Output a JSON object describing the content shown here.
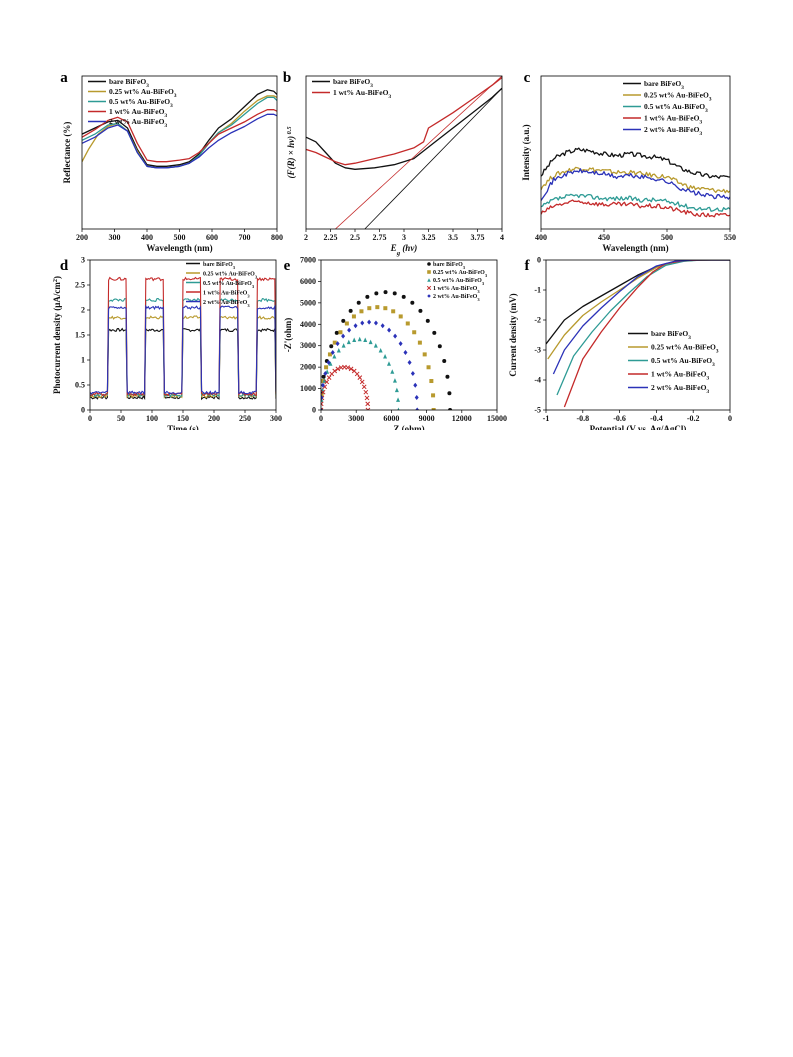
{
  "palette": [
    "#111111",
    "#b89a2e",
    "#2e9b95",
    "#c42a2a",
    "#2b32b8"
  ],
  "chart_data": [
    {
      "panel": "a",
      "type": "line",
      "xlabel": "Wavelength (nm)",
      "ylabel": "Reflectance (%)",
      "xlim": [
        200,
        800
      ],
      "xticks": [
        200,
        300,
        400,
        500,
        600,
        700,
        800
      ],
      "ylim": [
        0,
        100
      ],
      "yticks_shown": false,
      "legend_position": "top-left",
      "series": [
        {
          "name": "bare BiFeO3",
          "color": "#111111",
          "x": [
            200,
            240,
            280,
            310,
            340,
            370,
            400,
            430,
            460,
            500,
            530,
            560,
            590,
            620,
            660,
            700,
            740,
            770,
            790,
            800
          ],
          "y": [
            62,
            66,
            70,
            71,
            66,
            52,
            42,
            41,
            41,
            42,
            44,
            49,
            58,
            66,
            72,
            80,
            88,
            91,
            90,
            88
          ]
        },
        {
          "name": "0.25 wt% Au-BiFeO3",
          "color": "#b89a2e",
          "x": [
            200,
            220,
            250,
            280,
            310,
            340,
            370,
            400,
            430,
            460,
            500,
            530,
            560,
            590,
            620,
            660,
            700,
            740,
            770,
            790,
            800
          ],
          "y": [
            44,
            52,
            62,
            67,
            69,
            64,
            51,
            41,
            40,
            40,
            41,
            43,
            48,
            56,
            63,
            69,
            77,
            84,
            87,
            87,
            86
          ]
        },
        {
          "name": "0.5 wt% Au-BiFeO3",
          "color": "#2e9b95",
          "x": [
            200,
            240,
            280,
            310,
            340,
            370,
            400,
            430,
            460,
            500,
            530,
            560,
            590,
            620,
            660,
            700,
            740,
            770,
            790,
            800
          ],
          "y": [
            58,
            62,
            68,
            69,
            64,
            50,
            41,
            40,
            40,
            41,
            43,
            48,
            56,
            63,
            68,
            75,
            82,
            86,
            86,
            84
          ]
        },
        {
          "name": "1 wt% Au-BiFeO3",
          "color": "#c42a2a",
          "x": [
            200,
            240,
            280,
            310,
            340,
            370,
            400,
            430,
            460,
            500,
            530,
            560,
            590,
            620,
            660,
            700,
            740,
            770,
            790,
            800
          ],
          "y": [
            60,
            65,
            71,
            73,
            70,
            56,
            45,
            44,
            44,
            45,
            46,
            50,
            56,
            62,
            66,
            70,
            75,
            78,
            78,
            77
          ]
        },
        {
          "name": "2 wt% Au-BiFeO3",
          "color": "#2b32b8",
          "x": [
            200,
            240,
            280,
            310,
            340,
            370,
            400,
            430,
            460,
            500,
            530,
            560,
            590,
            620,
            660,
            700,
            740,
            770,
            790,
            800
          ],
          "y": [
            56,
            60,
            66,
            68,
            64,
            50,
            41,
            40,
            40,
            41,
            43,
            47,
            53,
            58,
            63,
            67,
            72,
            75,
            75,
            74
          ]
        }
      ]
    },
    {
      "panel": "b",
      "type": "line",
      "xlabel": "Eg (hv)",
      "ylabel": "(F(R) × hv) 0.5",
      "xlim": [
        2,
        4
      ],
      "xticks": [
        "2",
        "2.25",
        "2.5",
        "2.75",
        "3",
        "3.25",
        "3.5",
        "3.75",
        "4"
      ],
      "ylim": [
        0,
        100
      ],
      "yticks_shown": false,
      "legend_position": "top-left",
      "series": [
        {
          "name": "bare BiFeO3",
          "color": "#111111",
          "x": [
            2,
            2.1,
            2.2,
            2.3,
            2.4,
            2.5,
            2.7,
            2.9,
            3.1,
            3.3,
            3.5,
            3.7,
            3.9,
            4
          ],
          "y": [
            60,
            57,
            50,
            43,
            40,
            39,
            40,
            42,
            46,
            56,
            66,
            76,
            86,
            92
          ]
        },
        {
          "name": "1 wt% Au-BiFeO3",
          "color": "#c42a2a",
          "x": [
            2,
            2.1,
            2.2,
            2.3,
            2.4,
            2.5,
            2.7,
            2.9,
            3.1,
            3.2,
            3.25,
            3.35,
            3.5,
            3.7,
            3.9,
            4
          ],
          "y": [
            52,
            50,
            47,
            44,
            42,
            43,
            46,
            49,
            53,
            57,
            66,
            70,
            76,
            85,
            94,
            99
          ]
        },
        {
          "name": "bare BiFeO3 fit",
          "color": "#111111",
          "x": [
            2.6,
            4
          ],
          "y": [
            0,
            92
          ]
        },
        {
          "name": "1 wt% Au-BiFeO3 fit",
          "color": "#c42a2a",
          "x": [
            2.3,
            4
          ],
          "y": [
            0,
            100
          ]
        }
      ]
    },
    {
      "panel": "c",
      "type": "line",
      "xlabel": "Wavelength (nm)",
      "ylabel": "Intensity (a.u.)",
      "xlim": [
        400,
        550
      ],
      "xticks": [
        400,
        450,
        500,
        550
      ],
      "ylim": [
        0,
        100
      ],
      "yticks_shown": false,
      "legend_position": "top-right",
      "series": [
        {
          "name": "bare BiFeO3",
          "color": "#111111",
          "x": [
            400,
            410,
            420,
            430,
            440,
            450,
            460,
            470,
            480,
            490,
            500,
            510,
            520,
            530,
            540,
            550
          ],
          "y": [
            35,
            46,
            50,
            52,
            51,
            49,
            48,
            49,
            48,
            47,
            45,
            40,
            37,
            35,
            34,
            34
          ]
        },
        {
          "name": "0.25 wt% Au-BiFeO3",
          "color": "#b89a2e",
          "x": [
            400,
            410,
            420,
            430,
            440,
            450,
            460,
            470,
            480,
            490,
            500,
            510,
            520,
            530,
            540,
            550
          ],
          "y": [
            27,
            35,
            38,
            40,
            39,
            38,
            37,
            37,
            36,
            35,
            34,
            30,
            27,
            26,
            25,
            25
          ]
        },
        {
          "name": "0.5 wt% Au-BiFeO3",
          "color": "#2e9b95",
          "x": [
            400,
            410,
            420,
            430,
            440,
            450,
            460,
            470,
            480,
            490,
            500,
            510,
            520,
            530,
            540,
            550
          ],
          "y": [
            14,
            19,
            21,
            22,
            21,
            20,
            20,
            20,
            19,
            19,
            18,
            16,
            14,
            13,
            13,
            13
          ]
        },
        {
          "name": "1 wt% Au-BiFeO3",
          "color": "#c42a2a",
          "x": [
            400,
            410,
            420,
            430,
            440,
            450,
            460,
            470,
            480,
            490,
            500,
            510,
            520,
            530,
            540,
            550
          ],
          "y": [
            10,
            15,
            17,
            18,
            17,
            16,
            16,
            16,
            15,
            15,
            14,
            12,
            10,
            9,
            9,
            9
          ]
        },
        {
          "name": "2 wt% Au-BiFeO3",
          "color": "#2b32b8",
          "x": [
            400,
            410,
            420,
            430,
            440,
            450,
            460,
            470,
            480,
            490,
            500,
            510,
            520,
            530,
            540,
            550
          ],
          "y": [
            20,
            32,
            36,
            38,
            37,
            36,
            34,
            35,
            34,
            33,
            31,
            27,
            24,
            22,
            21,
            21
          ]
        }
      ]
    },
    {
      "panel": "d",
      "type": "line",
      "xlabel": "Time (s)",
      "ylabel": "Photocurrent density (μA/cm²)",
      "xlim": [
        0,
        300
      ],
      "xticks": [
        0,
        50,
        100,
        150,
        200,
        250,
        300
      ],
      "ylim": [
        0,
        3
      ],
      "yticks": [
        "0",
        "0.5",
        "1",
        "1.5",
        "2",
        "2.5",
        "3"
      ],
      "legend_position": "top-right",
      "light_on_intervals": [
        [
          30,
          60
        ],
        [
          90,
          120
        ],
        [
          150,
          180
        ],
        [
          210,
          240
        ],
        [
          270,
          300
        ]
      ],
      "series": [
        {
          "name": "bare BiFeO3",
          "color": "#111111",
          "on_level": 1.6,
          "off_level": 0.25
        },
        {
          "name": "0.25 wt% Au-BiFeO3",
          "color": "#b89a2e",
          "on_level": 1.85,
          "off_level": 0.28
        },
        {
          "name": "0.5 wt% Au-BiFeO3",
          "color": "#2e9b95",
          "on_level": 2.2,
          "off_level": 0.3
        },
        {
          "name": "1 wt% Au-BiFeO3",
          "color": "#c42a2a",
          "on_level": 2.62,
          "off_level": 0.32
        },
        {
          "name": "2 wt% Au-BiFeO3",
          "color": "#2b32b8",
          "on_level": 2.05,
          "off_level": 0.35
        }
      ]
    },
    {
      "panel": "e",
      "type": "scatter",
      "xlabel": "Z (ohm)",
      "ylabel": "-Z'(ohm)",
      "xlim": [
        0,
        15000
      ],
      "xticks": [
        0,
        3000,
        6000,
        9000,
        12000,
        15000
      ],
      "ylim": [
        0,
        7000
      ],
      "yticks": [
        0,
        1000,
        2000,
        3000,
        4000,
        5000,
        6000,
        7000
      ],
      "legend_position": "top-right",
      "series": [
        {
          "name": "bare BiFeO3",
          "color": "#111111",
          "marker": "circle",
          "center": 5500,
          "radius": 5500
        },
        {
          "name": "0.25 wt% Au-BiFeO3",
          "color": "#b89a2e",
          "marker": "square",
          "center": 4800,
          "radius": 4800
        },
        {
          "name": "0.5 wt% Au-BiFeO3",
          "color": "#2e9b95",
          "marker": "triangle",
          "center": 3300,
          "radius": 3300
        },
        {
          "name": "1 wt% Au-BiFeO3",
          "color": "#c42a2a",
          "marker": "x",
          "center": 2000,
          "radius": 2000
        },
        {
          "name": "2 wt% Au-BiFeO3",
          "color": "#2b32b8",
          "marker": "diamond",
          "center": 4100,
          "radius": 4100
        }
      ]
    },
    {
      "panel": "f",
      "type": "line",
      "xlabel": "Potential (V vs. Ag/AgCl)",
      "ylabel": "Current density (mV)",
      "xlim": [
        -1,
        0
      ],
      "xticks": [
        "-1",
        "-0.8",
        "-0.6",
        "-0.4",
        "-0.2",
        "0"
      ],
      "ylim": [
        -5,
        0
      ],
      "yticks": [
        "-5",
        "-4",
        "-3",
        "-2",
        "-1",
        "0"
      ],
      "legend_position": "bottom-right",
      "series": [
        {
          "name": "bare BiFeO3",
          "color": "#111111",
          "x": [
            -1,
            -0.9,
            -0.8,
            -0.7,
            -0.6,
            -0.5,
            -0.4,
            -0.3,
            -0.2,
            -0.1,
            0
          ],
          "y": [
            -2.8,
            -2.0,
            -1.55,
            -1.2,
            -0.85,
            -0.5,
            -0.22,
            -0.05,
            -0.01,
            0,
            0
          ]
        },
        {
          "name": "0.25 wt% Au-BiFeO3",
          "color": "#b89a2e",
          "x": [
            -0.99,
            -0.9,
            -0.8,
            -0.7,
            -0.6,
            -0.5,
            -0.4,
            -0.3,
            -0.2,
            -0.1,
            0
          ],
          "y": [
            -3.3,
            -2.5,
            -1.85,
            -1.4,
            -1.0,
            -0.6,
            -0.25,
            -0.06,
            -0.01,
            0,
            0
          ]
        },
        {
          "name": "0.5 wt% Au-BiFeO3",
          "color": "#2e9b95",
          "x": [
            -0.94,
            -0.85,
            -0.75,
            -0.65,
            -0.55,
            -0.45,
            -0.35,
            -0.25,
            -0.15,
            0
          ],
          "y": [
            -4.5,
            -3.2,
            -2.4,
            -1.7,
            -1.1,
            -0.55,
            -0.18,
            -0.04,
            0,
            0
          ]
        },
        {
          "name": "1 wt% Au-BiFeO3",
          "color": "#c42a2a",
          "x": [
            -0.9,
            -0.85,
            -0.8,
            -0.7,
            -0.6,
            -0.5,
            -0.42,
            -0.35,
            -0.25,
            -0.15,
            0
          ],
          "y": [
            -4.9,
            -4.1,
            -3.3,
            -2.4,
            -1.6,
            -0.9,
            -0.4,
            -0.12,
            -0.02,
            0,
            0
          ]
        },
        {
          "name": "2 wt% Au-BiFeO3",
          "color": "#2b32b8",
          "x": [
            -0.96,
            -0.9,
            -0.8,
            -0.7,
            -0.6,
            -0.5,
            -0.4,
            -0.3,
            -0.2,
            -0.1,
            0
          ],
          "y": [
            -3.8,
            -3.0,
            -2.2,
            -1.6,
            -1.05,
            -0.55,
            -0.2,
            -0.04,
            0,
            0,
            0
          ]
        }
      ]
    }
  ]
}
